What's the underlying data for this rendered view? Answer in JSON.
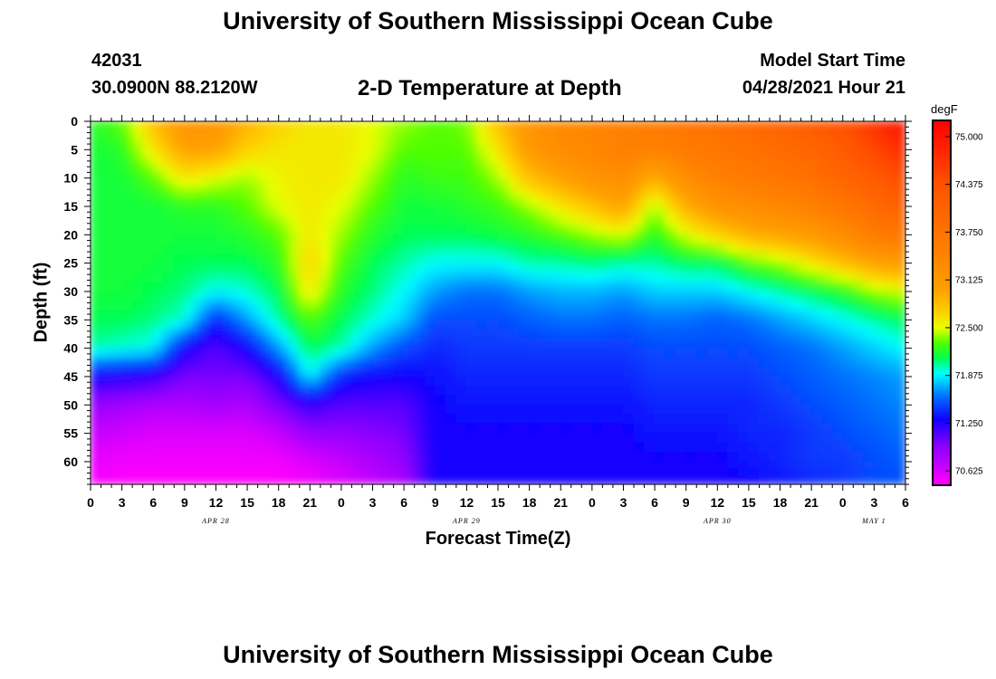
{
  "header": {
    "title": "University of Southern Mississippi Ocean Cube",
    "station_id": "42031",
    "station_position": "30.0900N  88.2120W",
    "plot_title": "2-D Temperature at Depth",
    "start_label": "Model Start Time",
    "start_value": "04/28/2021 Hour 21"
  },
  "footer": {
    "title": "University of Southern Mississippi Ocean Cube"
  },
  "chart_data": {
    "type": "heatmap",
    "title": "2-D Temperature at Depth",
    "xlabel": "Forecast Time(Z)",
    "ylabel": "Depth (ft)",
    "colorbar_unit": "degF",
    "x_ticks": [
      "0",
      "3",
      "6",
      "9",
      "12",
      "15",
      "18",
      "21",
      "0",
      "3",
      "6",
      "9",
      "12",
      "15",
      "18",
      "21",
      "0",
      "3",
      "6",
      "9",
      "12",
      "15",
      "18",
      "21",
      "0",
      "3",
      "6"
    ],
    "x_range_hours": [
      0,
      78
    ],
    "day_labels": [
      {
        "label": "APR 28",
        "hour": 12
      },
      {
        "label": "APR 29",
        "hour": 36
      },
      {
        "label": "APR 30",
        "hour": 60
      },
      {
        "label": "MAY 1",
        "hour": 75
      }
    ],
    "y_ticks": [
      "0",
      "5",
      "10",
      "15",
      "20",
      "25",
      "30",
      "35",
      "40",
      "45",
      "50",
      "55",
      "60"
    ],
    "y_range_ft": [
      0,
      64
    ],
    "colorbar_ticks": [
      "75.000",
      "74.375",
      "73.750",
      "73.125",
      "72.500",
      "71.875",
      "71.250",
      "70.625"
    ],
    "color_range": [
      70.45,
      75.2
    ],
    "colormap": [
      {
        "v": 70.45,
        "c": "#ff00ff"
      },
      {
        "v": 70.95,
        "c": "#8a00ff"
      },
      {
        "v": 71.3,
        "c": "#1200ff"
      },
      {
        "v": 71.6,
        "c": "#0070ff"
      },
      {
        "v": 71.9,
        "c": "#00ffff"
      },
      {
        "v": 72.1,
        "c": "#00ff50"
      },
      {
        "v": 72.3,
        "c": "#50ff00"
      },
      {
        "v": 72.5,
        "c": "#e8ff00"
      },
      {
        "v": 72.7,
        "c": "#ffd000"
      },
      {
        "v": 73.0,
        "c": "#ffa000"
      },
      {
        "v": 73.5,
        "c": "#ff8000"
      },
      {
        "v": 74.4,
        "c": "#ff5000"
      },
      {
        "v": 75.2,
        "c": "#ff0000"
      }
    ],
    "grid_times": [
      0,
      3,
      6,
      9,
      12,
      15,
      18,
      21,
      24,
      27,
      30,
      33,
      36,
      39,
      42,
      45,
      48,
      51,
      54,
      57,
      60,
      63,
      66,
      69,
      72,
      75,
      78
    ],
    "grid_depths": [
      0,
      5,
      10,
      15,
      20,
      25,
      30,
      35,
      40,
      45,
      50,
      55,
      60,
      64
    ],
    "temperature": [
      [
        72.2,
        72.15,
        72.15,
        72.15,
        72.15,
        72.15,
        72.15,
        72.1,
        72.0,
        71.3,
        70.9,
        70.7,
        70.55,
        70.5
      ],
      [
        72.3,
        72.2,
        72.15,
        72.15,
        72.15,
        72.15,
        72.15,
        72.1,
        71.95,
        71.25,
        70.85,
        70.65,
        70.5,
        70.45
      ],
      [
        72.8,
        72.6,
        72.3,
        72.15,
        72.15,
        72.15,
        72.1,
        72.05,
        71.9,
        71.2,
        70.8,
        70.6,
        70.5,
        70.45
      ],
      [
        73.2,
        73.0,
        72.6,
        72.2,
        72.15,
        72.1,
        72.05,
        71.95,
        71.3,
        71.0,
        70.8,
        70.6,
        70.5,
        70.45
      ],
      [
        73.2,
        73.0,
        72.5,
        72.2,
        72.15,
        72.1,
        71.9,
        71.4,
        71.1,
        71.0,
        70.85,
        70.6,
        70.5,
        70.45
      ],
      [
        72.9,
        72.7,
        72.4,
        72.3,
        72.2,
        72.1,
        71.95,
        71.7,
        71.3,
        71.0,
        70.8,
        70.6,
        70.5,
        70.45
      ],
      [
        72.7,
        72.6,
        72.55,
        72.5,
        72.3,
        72.2,
        72.1,
        72.0,
        71.7,
        71.25,
        71.0,
        70.7,
        70.5,
        70.45
      ],
      [
        72.6,
        72.6,
        72.6,
        72.6,
        72.6,
        72.7,
        72.6,
        72.3,
        72.1,
        71.9,
        71.2,
        70.9,
        70.6,
        70.5
      ],
      [
        72.6,
        72.6,
        72.6,
        72.5,
        72.4,
        72.3,
        72.2,
        72.1,
        72.0,
        71.4,
        71.1,
        70.9,
        70.7,
        70.6
      ],
      [
        72.5,
        72.5,
        72.4,
        72.3,
        72.2,
        72.1,
        72.05,
        71.95,
        71.7,
        71.3,
        71.1,
        70.95,
        70.8,
        70.7
      ],
      [
        72.4,
        72.3,
        72.2,
        72.15,
        72.1,
        72.0,
        71.9,
        71.8,
        71.5,
        71.3,
        71.1,
        71.0,
        70.9,
        70.8
      ],
      [
        72.3,
        72.3,
        72.25,
        72.15,
        72.1,
        71.9,
        71.7,
        71.5,
        71.4,
        71.35,
        71.3,
        71.3,
        71.3,
        71.3
      ],
      [
        72.35,
        72.3,
        72.25,
        72.2,
        72.1,
        71.9,
        71.6,
        71.5,
        71.45,
        71.4,
        71.35,
        71.3,
        71.3,
        71.3
      ],
      [
        72.8,
        72.6,
        72.4,
        72.25,
        72.15,
        71.9,
        71.6,
        71.5,
        71.45,
        71.4,
        71.35,
        71.3,
        71.3,
        71.3
      ],
      [
        73.2,
        73.1,
        72.8,
        72.4,
        72.2,
        72.0,
        71.7,
        71.55,
        71.45,
        71.4,
        71.35,
        71.3,
        71.3,
        71.3
      ],
      [
        73.35,
        73.3,
        73.0,
        72.6,
        72.3,
        72.0,
        71.75,
        71.6,
        71.45,
        71.4,
        71.35,
        71.3,
        71.3,
        71.3
      ],
      [
        73.4,
        73.4,
        73.2,
        72.8,
        72.4,
        72.05,
        71.75,
        71.6,
        71.45,
        71.4,
        71.35,
        71.3,
        71.3,
        71.3
      ],
      [
        73.5,
        73.5,
        73.3,
        73.0,
        72.5,
        72.0,
        71.7,
        71.55,
        71.45,
        71.4,
        71.35,
        71.3,
        71.3,
        71.3
      ],
      [
        73.6,
        73.5,
        72.9,
        72.4,
        72.2,
        72.0,
        71.8,
        71.6,
        71.5,
        71.45,
        71.4,
        71.35,
        71.3,
        71.3
      ],
      [
        73.7,
        73.6,
        73.3,
        72.9,
        72.5,
        72.1,
        71.8,
        71.6,
        71.5,
        71.45,
        71.4,
        71.35,
        71.3,
        71.3
      ],
      [
        73.8,
        73.7,
        73.5,
        73.2,
        72.7,
        72.1,
        71.8,
        71.55,
        71.5,
        71.45,
        71.4,
        71.35,
        71.3,
        71.3
      ],
      [
        73.9,
        73.8,
        73.6,
        73.3,
        72.9,
        72.3,
        71.9,
        71.6,
        71.5,
        71.45,
        71.4,
        71.4,
        71.35,
        71.3
      ],
      [
        74.05,
        73.9,
        73.7,
        73.4,
        73.0,
        72.4,
        72.0,
        71.7,
        71.55,
        71.5,
        71.45,
        71.4,
        71.4,
        71.35
      ],
      [
        74.2,
        74.0,
        73.8,
        73.5,
        73.1,
        72.6,
        72.1,
        71.8,
        71.6,
        71.55,
        71.5,
        71.45,
        71.45,
        71.4
      ],
      [
        74.4,
        74.2,
        74.0,
        73.7,
        73.3,
        72.8,
        72.2,
        71.9,
        71.7,
        71.6,
        71.55,
        71.5,
        71.45,
        71.45
      ],
      [
        74.7,
        74.5,
        74.2,
        73.9,
        73.6,
        73.0,
        72.4,
        72.0,
        71.8,
        71.65,
        71.6,
        71.55,
        71.5,
        71.5
      ],
      [
        75.1,
        74.8,
        74.5,
        74.1,
        73.7,
        73.1,
        72.5,
        72.1,
        71.9,
        71.7,
        71.65,
        71.6,
        71.55,
        71.5
      ]
    ]
  }
}
